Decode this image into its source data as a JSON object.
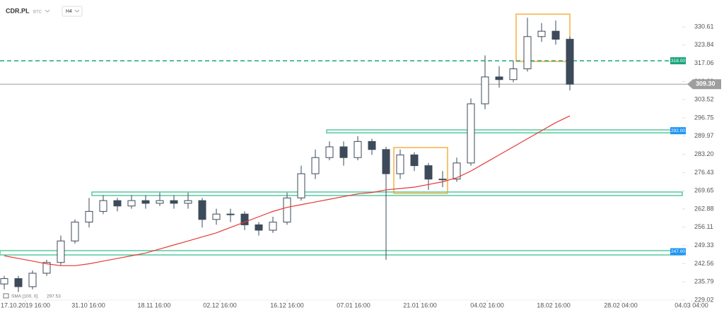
{
  "chart_data": {
    "type": "candlestick",
    "title": "CDR.PL",
    "subtitle": "BTC",
    "timeframe": "H4",
    "up_color": "#ffffff",
    "down_color": "#3d4a5a",
    "open": [
      235,
      237,
      234,
      239,
      243,
      251,
      258,
      262,
      266,
      264,
      266,
      265,
      266,
      265,
      266,
      259,
      261,
      261,
      257,
      255,
      258,
      267,
      276,
      282,
      286,
      282,
      288,
      285,
      276,
      283,
      279,
      274,
      274,
      280,
      302,
      312,
      311,
      315,
      327,
      329,
      326
    ],
    "high": [
      238,
      238,
      240,
      244,
      253,
      259,
      267,
      268,
      267,
      268,
      268,
      269,
      268,
      269,
      267,
      263,
      263,
      262,
      258,
      260,
      269,
      279,
      285,
      288,
      288,
      290,
      289,
      286,
      285,
      284,
      280,
      277,
      282,
      304,
      320,
      316,
      318,
      334,
      332,
      333,
      327
    ],
    "low": [
      233,
      232,
      233,
      238,
      242,
      250,
      256,
      261,
      262,
      263,
      263,
      264,
      263,
      263,
      256,
      257,
      258,
      255,
      253,
      254,
      257,
      266,
      274,
      281,
      279,
      281,
      283,
      244,
      274,
      277,
      270,
      271,
      273,
      279,
      300,
      308,
      310,
      314,
      325,
      324,
      307
    ],
    "close": [
      237,
      234,
      239,
      243,
      251,
      258,
      262,
      266,
      264,
      266,
      265,
      266,
      265,
      266,
      259,
      261,
      261,
      257,
      255,
      258,
      267,
      276,
      282,
      286,
      282,
      288,
      285,
      276,
      283,
      279,
      274,
      274,
      280,
      302,
      312,
      311,
      315,
      327,
      329,
      326,
      309.3
    ],
    "series": [
      {
        "name": "SMA [100, 0]",
        "color": "#e53935",
        "values": [
          245.5,
          244.5,
          243.5,
          242.5,
          241.8,
          241.8,
          242.5,
          243.5,
          244.5,
          245.5,
          246.5,
          248,
          249.5,
          251,
          252.5,
          254,
          256,
          258,
          260,
          262,
          263.5,
          264.5,
          265.5,
          266.5,
          267.5,
          268.5,
          269,
          270,
          270.5,
          271,
          272,
          273,
          274.5,
          277,
          280,
          283,
          286,
          289,
          292,
          295,
          297.53
        ]
      }
    ],
    "xlim": [
      -0.3,
      50.2
    ],
    "xticks": [
      {
        "value": 1.5,
        "label": "17.10.2019  16:00"
      },
      {
        "value": 5.95,
        "label": "31.10  16:00"
      },
      {
        "value": 10.6,
        "label": "18.11  16:00"
      },
      {
        "value": 15.25,
        "label": "02.12  16:00"
      },
      {
        "value": 20,
        "label": "16.12  16:00"
      },
      {
        "value": 24.7,
        "label": "07.01  16:00"
      },
      {
        "value": 29.4,
        "label": "21.01  16:00"
      },
      {
        "value": 34.15,
        "label": "04.02  16:00"
      },
      {
        "value": 38.85,
        "label": "18.02  16:00"
      },
      {
        "value": 43.6,
        "label": "28.02  04:00"
      },
      {
        "value": 48.6,
        "label": "04.03  04:00"
      }
    ],
    "ylim": [
      229.02,
      340.6
    ],
    "yticks": [
      330.61,
      323.84,
      317.06,
      310.29,
      303.52,
      296.75,
      289.97,
      {
        "value": 283.2,
        "label": "283.20"
      },
      276.43,
      269.65,
      262.88,
      256.11,
      249.33,
      242.56,
      235.79,
      229.02
    ],
    "grid": false,
    "levels": [
      {
        "value": 318,
        "label": "318.00",
        "color": "#1aa67a",
        "style": "dashed"
      },
      {
        "value": 309.3,
        "label": "309.30",
        "color": "#9e9e9e",
        "style": "solid"
      }
    ],
    "zones": [
      {
        "value": 292,
        "label": "292.00",
        "top": 292.3,
        "bottom": 291.2,
        "start": 22.8,
        "color": "#58c9a0",
        "label_color": "#2196f3"
      },
      {
        "top": 269.2,
        "bottom": 267.9,
        "start": 6.2,
        "color": "#58c9a0"
      },
      {
        "value": 247,
        "label": "247.00",
        "top": 247.4,
        "bottom": 245.8,
        "start": -0.3,
        "color": "#58c9a0",
        "label_color": "#2196f3"
      }
    ]
  }
}
